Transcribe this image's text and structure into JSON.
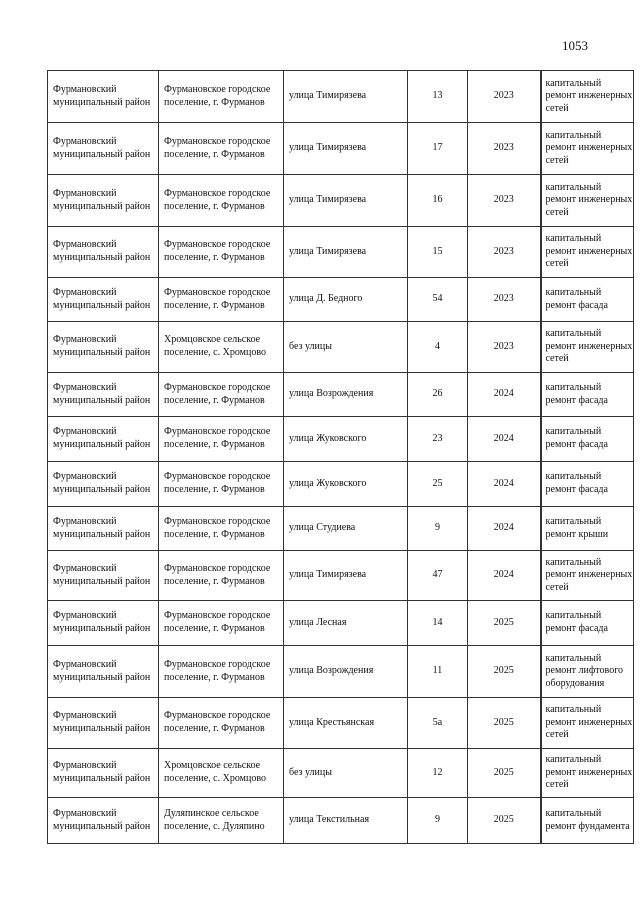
{
  "page_number": "1053",
  "rows": [
    {
      "district": "Фурмановский муниципальный район",
      "settlement": "Фурмановское городское поселение, г. Фурманов",
      "street": "улица Тимирязева",
      "house": "13",
      "year": "2023",
      "work": "капитальный ремонт инженерных сетей"
    },
    {
      "district": "Фурмановский муниципальный район",
      "settlement": "Фурмановское городское поселение, г. Фурманов",
      "street": "улица Тимирязева",
      "house": "17",
      "year": "2023",
      "work": "капитальный ремонт инженерных сетей"
    },
    {
      "district": "Фурмановский муниципальный район",
      "settlement": "Фурмановское городское поселение, г. Фурманов",
      "street": "улица Тимирязева",
      "house": "16",
      "year": "2023",
      "work": "капитальный ремонт инженерных сетей"
    },
    {
      "district": "Фурмановский муниципальный район",
      "settlement": "Фурмановское городское поселение, г. Фурманов",
      "street": "улица Тимирязева",
      "house": "15",
      "year": "2023",
      "work": "капитальный ремонт инженерных сетей"
    },
    {
      "district": "Фурмановский муниципальный район",
      "settlement": "Фурмановское городское поселение, г. Фурманов",
      "street": "улица Д. Бедного",
      "house": "54",
      "year": "2023",
      "work": "капитальный ремонт фасада"
    },
    {
      "district": "Фурмановский муниципальный район",
      "settlement": "Хромцовское сельское поселение, с. Хромцово",
      "street": "без улицы",
      "house": "4",
      "year": "2023",
      "work": "капитальный ремонт инженерных сетей"
    },
    {
      "district": "Фурмановский муниципальный район",
      "settlement": "Фурмановское городское поселение, г. Фурманов",
      "street": "улица Возрождения",
      "house": "26",
      "year": "2024",
      "work": "капитальный ремонт фасада"
    },
    {
      "district": "Фурмановский муниципальный район",
      "settlement": "Фурмановское городское поселение, г. Фурманов",
      "street": "улица  Жуковского",
      "house": "23",
      "year": "2024",
      "work": "капитальный ремонт фасада"
    },
    {
      "district": "Фурмановский муниципальный район",
      "settlement": "Фурмановское городское поселение, г. Фурманов",
      "street": "улица  Жуковского",
      "house": "25",
      "year": "2024",
      "work": "капитальный ремонт фасада"
    },
    {
      "district": "Фурмановский муниципальный район",
      "settlement": "Фурмановское городское поселение, г. Фурманов",
      "street": "улица  Студиева",
      "house": "9",
      "year": "2024",
      "work": "капитальный ремонт крыши"
    },
    {
      "district": "Фурмановский муниципальный район",
      "settlement": "Фурмановское городское поселение, г. Фурманов",
      "street": "улица Тимирязева",
      "house": "47",
      "year": "2024",
      "work": "капитальный ремонт инженерных сетей"
    },
    {
      "district": "Фурмановский муниципальный район",
      "settlement": "Фурмановское городское поселение, г. Фурманов",
      "street": "улица Лесная",
      "house": "14",
      "year": "2025",
      "work": "капитальный ремонт фасада"
    },
    {
      "district": "Фурмановский муниципальный район",
      "settlement": "Фурмановское городское поселение, г. Фурманов",
      "street": "улица Возрождения",
      "house": "11",
      "year": "2025",
      "work": "капитальный ремонт лифтового оборудования"
    },
    {
      "district": "Фурмановский муниципальный район",
      "settlement": "Фурмановское городское поселение, г. Фурманов",
      "street": "улица Крестьянская",
      "house": "5а",
      "year": "2025",
      "work": "капитальный ремонт инженерных сетей"
    },
    {
      "district": "Фурмановский муниципальный район",
      "settlement": "Хромцовское сельское поселение, с. Хромцово",
      "street": "без улицы",
      "house": "12",
      "year": "2025",
      "work": "капитальный ремонт инженерных сетей"
    },
    {
      "district": "Фурмановский муниципальный район",
      "settlement": "Дуляпинское сельское поселение, с. Дуляпино",
      "street": "улица Текстильная",
      "house": "9",
      "year": "2025",
      "work": "капитальный ремонт фундамента"
    }
  ]
}
